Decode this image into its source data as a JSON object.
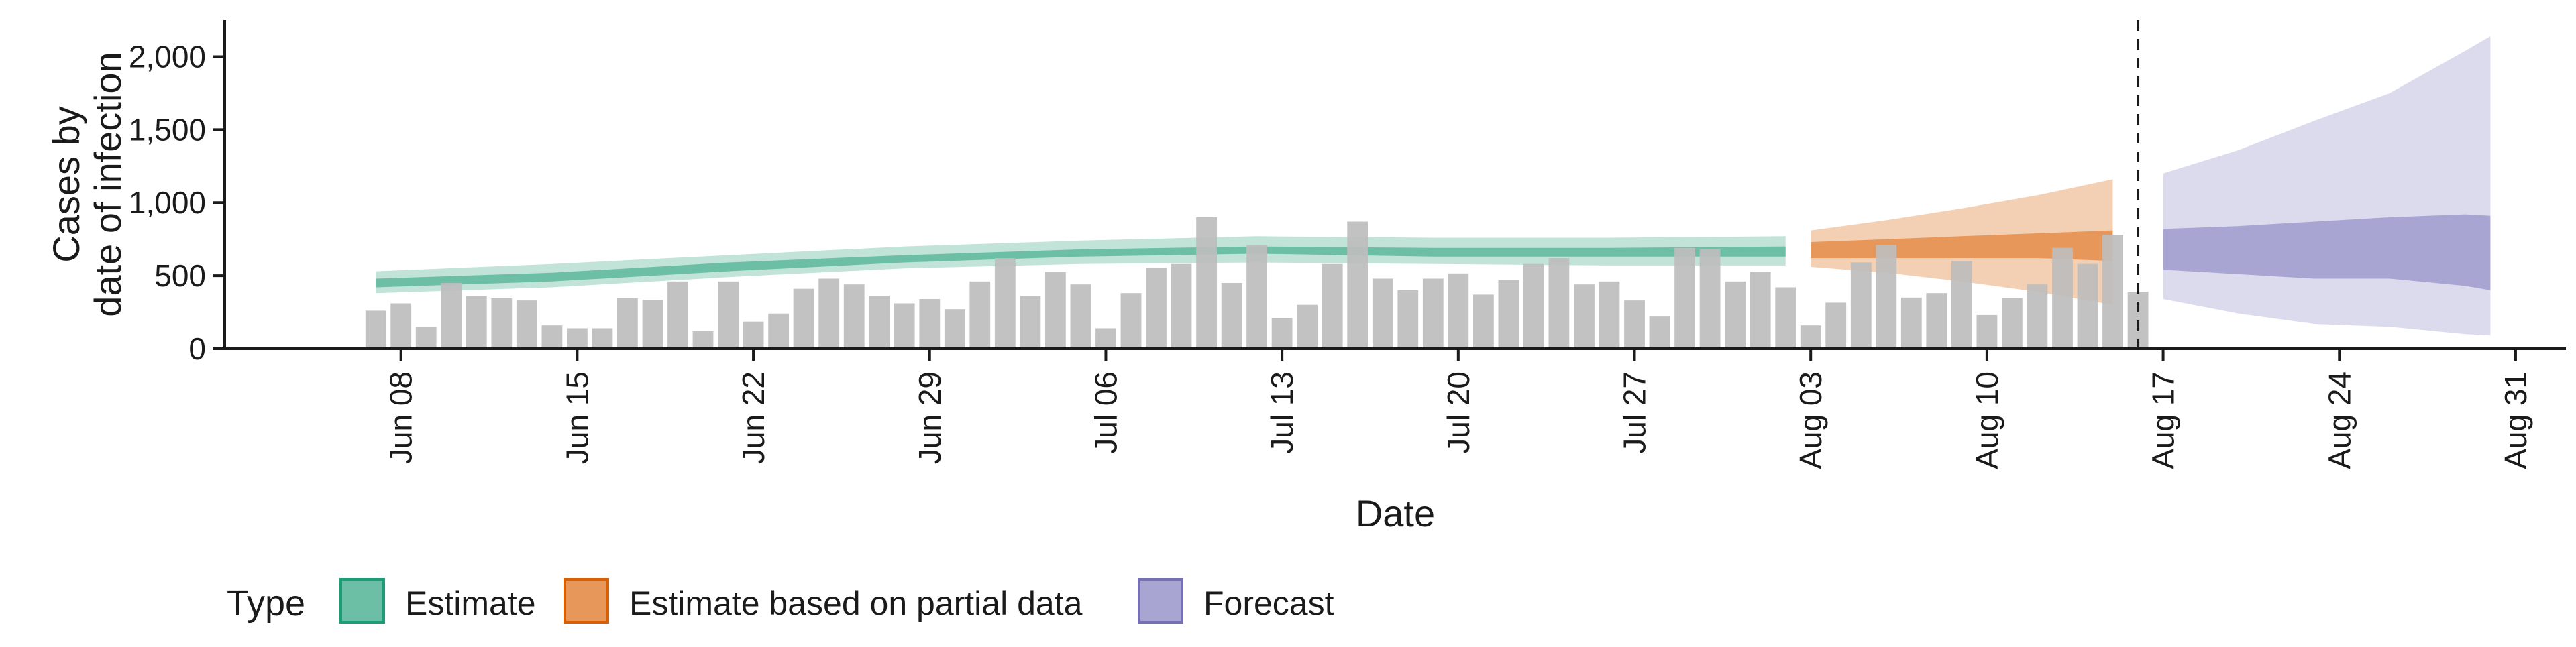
{
  "chart_data": {
    "type": "bar",
    "xlabel": "Date",
    "ylabel_lines": [
      "Cases by",
      "date of infection"
    ],
    "ylim": [
      0,
      2250
    ],
    "xlim": [
      "2021-06-01",
      "2021-09-02"
    ],
    "y_ticks": [
      0,
      500,
      1000,
      1500,
      2000
    ],
    "y_tick_labels": [
      "0",
      "500",
      "1,000",
      "1,500",
      "2,000"
    ],
    "x_ticks": [
      "2021-06-08",
      "2021-06-15",
      "2021-06-22",
      "2021-06-29",
      "2021-07-06",
      "2021-07-13",
      "2021-07-20",
      "2021-07-27",
      "2021-08-03",
      "2021-08-10",
      "2021-08-17",
      "2021-08-24",
      "2021-08-31"
    ],
    "x_tick_labels": [
      "Jun 08",
      "Jun 15",
      "Jun 22",
      "Jun 29",
      "Jul 06",
      "Jul 13",
      "Jul 20",
      "Jul 27",
      "Aug 03",
      "Aug 10",
      "Aug 17",
      "Aug 24",
      "Aug 31"
    ],
    "grid": false,
    "forecast_start_line": "2021-08-16",
    "bars": {
      "start_date": "2021-06-07",
      "values": [
        260,
        310,
        150,
        450,
        360,
        345,
        330,
        160,
        140,
        140,
        345,
        335,
        460,
        120,
        460,
        185,
        240,
        410,
        480,
        440,
        360,
        310,
        340,
        270,
        460,
        620,
        360,
        525,
        440,
        140,
        380,
        555,
        580,
        900,
        450,
        710,
        210,
        300,
        580,
        870,
        480,
        400,
        480,
        515,
        370,
        470,
        580,
        620,
        440,
        460,
        330,
        220,
        690,
        680,
        460,
        525,
        420,
        160,
        315,
        590,
        710,
        350,
        380,
        600,
        230,
        345,
        440,
        690,
        580,
        780,
        390
      ]
    },
    "legend": {
      "title": "Type",
      "position": "bottom",
      "entries": [
        {
          "label": "Estimate",
          "fill": "#6cbfa5",
          "stroke": "#1b9e77"
        },
        {
          "label": "Estimate based on partial data",
          "fill": "#e8975b",
          "stroke": "#d95f02"
        },
        {
          "label": "Forecast",
          "fill": "#a8a5d3",
          "stroke": "#7570b3"
        }
      ]
    },
    "colors": {
      "bars": "#bdbdbd",
      "estimate_inner": "#6cbfa5",
      "estimate_outer": "#c2e4d8",
      "partial_inner": "#e8975b",
      "partial_outer": "#f3cfb3",
      "forecast_inner": "#a8a5d3",
      "forecast_outer": "#dcdbee"
    },
    "series": [
      {
        "name": "Estimate",
        "x": [
          "2021-06-07",
          "2021-06-14",
          "2021-06-21",
          "2021-06-28",
          "2021-07-05",
          "2021-07-12",
          "2021-07-19",
          "2021-07-26",
          "2021-08-02"
        ],
        "inner_low": [
          420,
          460,
          530,
          590,
          630,
          650,
          630,
          630,
          630
        ],
        "inner_high": [
          480,
          520,
          590,
          640,
          680,
          700,
          690,
          690,
          700
        ],
        "outer_low": [
          380,
          420,
          490,
          550,
          580,
          590,
          580,
          570,
          570
        ],
        "outer_high": [
          530,
          580,
          640,
          700,
          740,
          770,
          760,
          760,
          770
        ]
      },
      {
        "name": "Estimate based on partial data",
        "x": [
          "2021-08-03",
          "2021-08-06",
          "2021-08-09",
          "2021-08-12",
          "2021-08-15"
        ],
        "inner_low": [
          620,
          620,
          620,
          620,
          600
        ],
        "inner_high": [
          730,
          750,
          770,
          790,
          810
        ],
        "outer_low": [
          560,
          520,
          460,
          390,
          300
        ],
        "outer_high": [
          810,
          880,
          960,
          1050,
          1160
        ]
      },
      {
        "name": "Forecast",
        "x": [
          "2021-08-17",
          "2021-08-20",
          "2021-08-23",
          "2021-08-26",
          "2021-08-29",
          "2021-08-30"
        ],
        "inner_low": [
          540,
          510,
          480,
          480,
          430,
          400
        ],
        "inner_high": [
          820,
          840,
          870,
          900,
          920,
          910
        ],
        "outer_low": [
          340,
          240,
          170,
          150,
          100,
          90
        ],
        "outer_high": [
          1200,
          1360,
          1560,
          1750,
          2040,
          2140
        ]
      }
    ]
  }
}
